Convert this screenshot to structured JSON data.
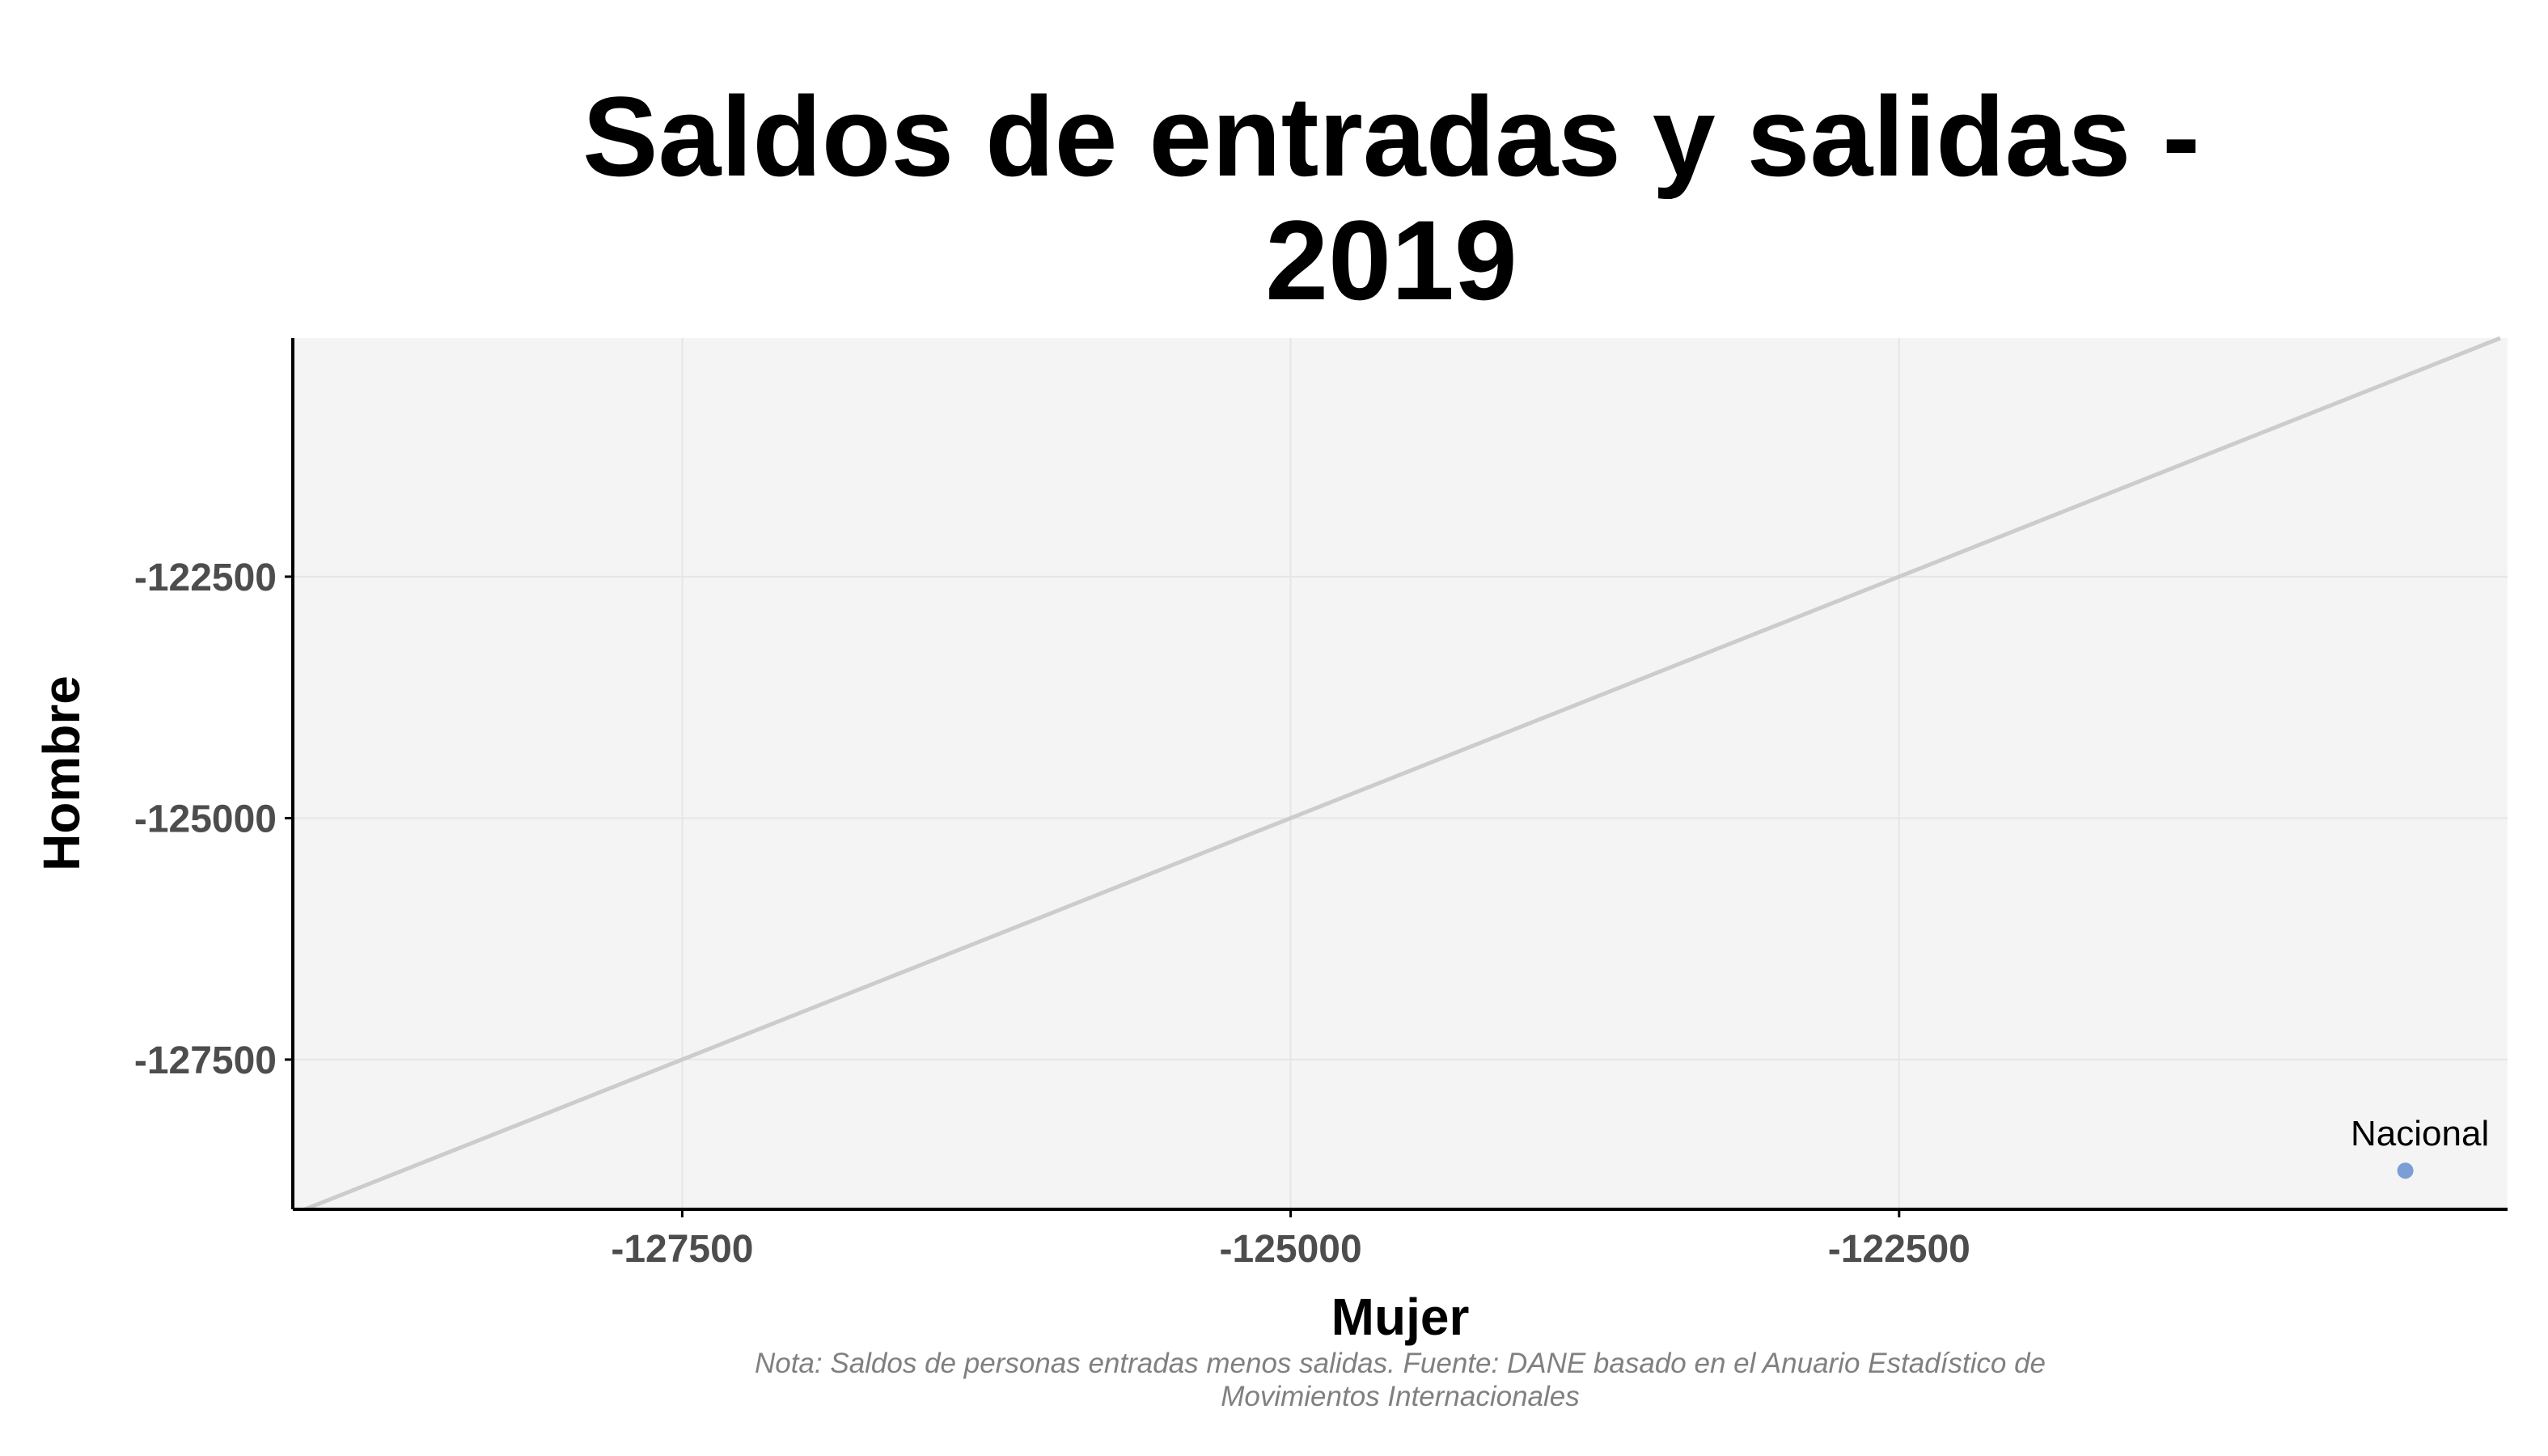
{
  "chart_data": {
    "type": "scatter",
    "title": [
      "Saldos de entradas y salidas -",
      "2019"
    ],
    "xlabel": "Mujer",
    "ylabel": "Hombre",
    "xlim": [
      -129100,
      -120000
    ],
    "ylim": [
      -129050,
      -120030
    ],
    "x_ticks": [
      -127500,
      -125000,
      -122500
    ],
    "y_ticks": [
      -122500,
      -125000,
      -127500
    ],
    "x_tick_labels": [
      "-127500",
      "-125000",
      "-122500"
    ],
    "y_tick_labels": [
      "-122500",
      "-125000",
      "-127500"
    ],
    "grid": true,
    "reference_line": "identity",
    "points": [
      {
        "label": "Nacional",
        "x": -120420,
        "y": -128650
      }
    ],
    "note": [
      "Nota: Saldos de personas entradas menos salidas. Fuente: DANE basado en el Anuario Estadístico de",
      "Movimientos Internacionales"
    ],
    "colors": {
      "panel": "#f4f4f4",
      "grid": "#e6e6e6",
      "reference_line": "#cccccc",
      "point": "#7b9fd4"
    }
  }
}
